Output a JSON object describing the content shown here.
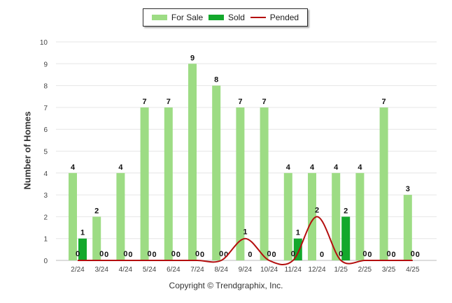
{
  "chart_data": {
    "type": "bar",
    "categories": [
      "2/24",
      "3/24",
      "4/24",
      "5/24",
      "6/24",
      "7/24",
      "8/24",
      "9/24",
      "10/24",
      "11/24",
      "12/24",
      "1/25",
      "2/25",
      "3/25",
      "4/25"
    ],
    "series": [
      {
        "name": "For Sale",
        "type": "bar",
        "color": "#9ddc84",
        "values": [
          4,
          2,
          4,
          7,
          7,
          9,
          8,
          7,
          7,
          4,
          4,
          4,
          4,
          7,
          3
        ]
      },
      {
        "name": "Sold",
        "type": "bar",
        "color": "#13a82c",
        "values": [
          1,
          0,
          0,
          0,
          0,
          0,
          0,
          0,
          0,
          1,
          0,
          2,
          0,
          0,
          0
        ]
      },
      {
        "name": "Pended",
        "type": "line",
        "color": "#b40e0e",
        "values": [
          0,
          0,
          0,
          0,
          0,
          0,
          0,
          1,
          0,
          0,
          2,
          0,
          0,
          0,
          0
        ]
      }
    ],
    "ylabel": "Number of Homes",
    "ylim": [
      0,
      10
    ],
    "yticks": [
      0,
      1,
      2,
      3,
      4,
      5,
      6,
      7,
      8,
      9,
      10
    ],
    "grid": true,
    "legend": "top-center"
  },
  "legend": {
    "for_sale": "For Sale",
    "sold": "Sold",
    "pended": "Pended"
  },
  "footer": {
    "copyright": "Copyright © Trendgraphix, Inc."
  }
}
